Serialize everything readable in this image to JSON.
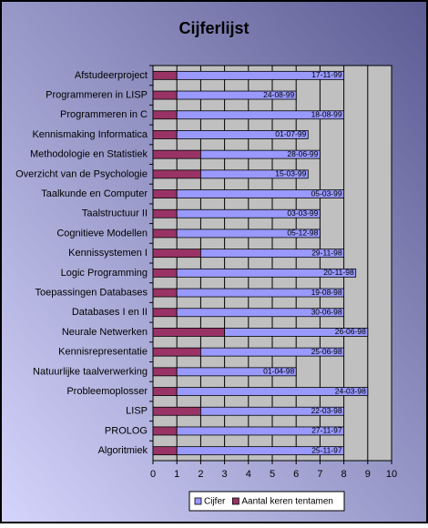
{
  "chart_data": {
    "type": "stacked-barh",
    "title": "Cijferlijst",
    "categories": [
      "Afstudeerproject",
      "Programmeren in LISP",
      "Programmeren in C",
      "Kennismaking Informatica",
      "Methodologie en Statistiek",
      "Overzicht van de Psychologie",
      "Taalkunde en Computer",
      "Taalstructuur II",
      "Cognitieve Modellen",
      "Kennissystemen I",
      "Logic Programming",
      "Toepassingen Databases",
      "Databases I en II",
      "Neurale Netwerken",
      "Kennisrepresentatie",
      "Natuurlijke taalverwerking",
      "Probleemoplosser",
      "LISP",
      "PROLOG",
      "Algoritmiek"
    ],
    "series": [
      {
        "name": "Cijfer",
        "color": "#9999ff",
        "values": [
          7,
          5,
          7,
          5.5,
          5,
          4.5,
          7,
          6,
          6,
          6,
          7.5,
          7,
          7,
          6,
          6,
          5,
          8,
          6,
          7,
          7
        ]
      },
      {
        "name": "Aantal keren tentamen",
        "color": "#993366",
        "values": [
          1,
          1,
          1,
          1,
          2,
          2,
          1,
          1,
          1,
          2,
          1,
          1,
          1,
          3,
          2,
          1,
          1,
          2,
          1,
          1
        ]
      }
    ],
    "annotations": [
      "17-11-99",
      "24-08-99",
      "18-08-99",
      "01-07-99",
      "28-06-99",
      "15-03-99",
      "05-03-99",
      "03-03-99",
      "05-12-98",
      "29-11-98",
      "20-11-98",
      "19-08-98",
      "30-06-98",
      "26-06-98",
      "25-06-98",
      "01-04-98",
      "24-03-98",
      "22-03-98",
      "27-11-97",
      "25-11-97"
    ],
    "xlim": [
      0,
      10
    ],
    "xticks": [
      0,
      1,
      2,
      3,
      4,
      5,
      6,
      7,
      8,
      9,
      10
    ],
    "grid": true,
    "legend": "bottom"
  }
}
